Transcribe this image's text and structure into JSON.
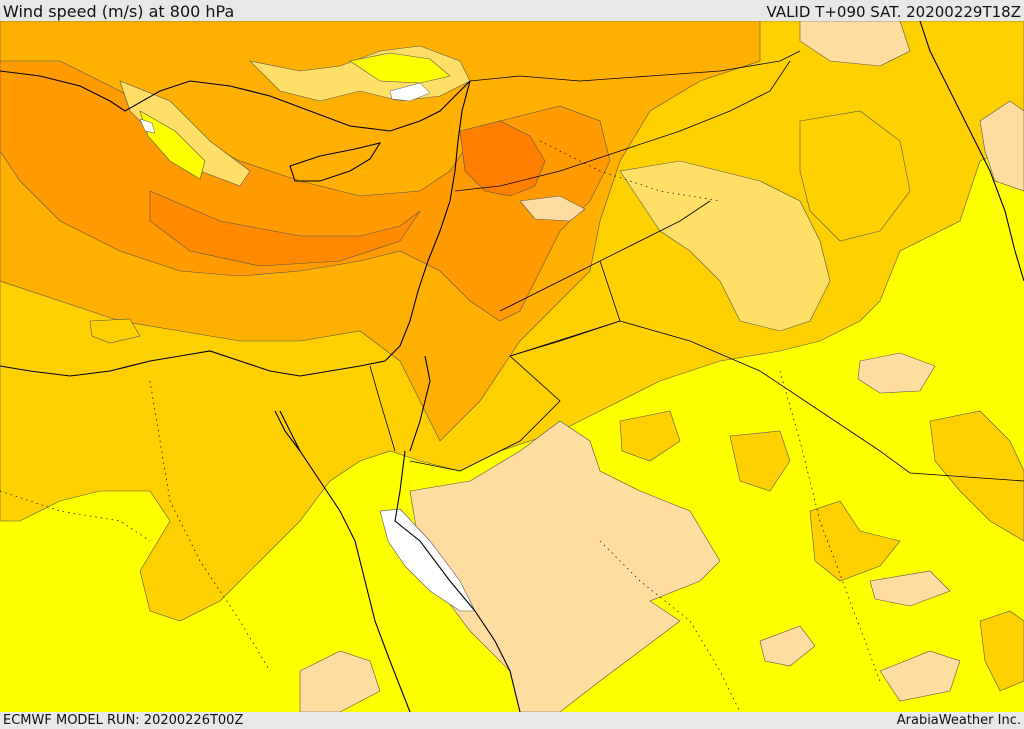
{
  "header": {
    "title": "Wind speed (m/s) at 800 hPa",
    "valid": "VALID T+090 SAT. 20200229T18Z"
  },
  "footer": {
    "model_run": "ECMWF MODEL RUN: 20200226T00Z",
    "brand": "ArabiaWeather Inc."
  },
  "colors": {
    "background_low": "#ffff00",
    "band_light": "#ffdf66",
    "band_mid": "#ffd000",
    "band_orange": "#ffb000",
    "band_deep": "#ff9a00",
    "band_core": "#ff8000",
    "calm_tan": "#ffdca0",
    "calm_white": "#ffffff",
    "coast_line": "#000000"
  }
}
